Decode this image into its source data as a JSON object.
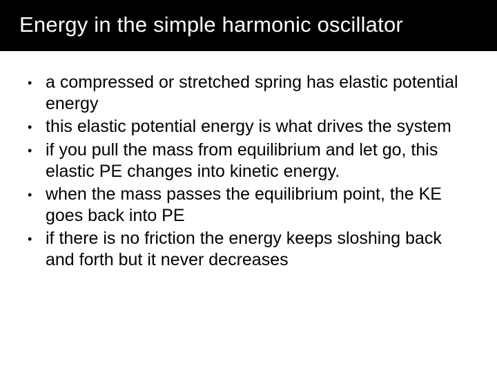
{
  "slide": {
    "title": "Energy in the simple harmonic oscillator",
    "title_bg_color": "#000000",
    "title_text_color": "#ffffff",
    "title_fontsize": 31,
    "body_bg_color": "#ffffff",
    "body_text_color": "#000000",
    "bullet_fontsize": 25,
    "bullet_marker": "•",
    "bullets": [
      "a compressed or stretched spring has elastic potential energy",
      "this elastic potential energy is what drives the system",
      "if you pull the mass from equilibrium and let go, this elastic PE changes into kinetic energy.",
      "when the mass passes the equilibrium point, the KE goes back into PE",
      "if there is no friction the energy keeps sloshing back and forth but it never decreases"
    ]
  }
}
